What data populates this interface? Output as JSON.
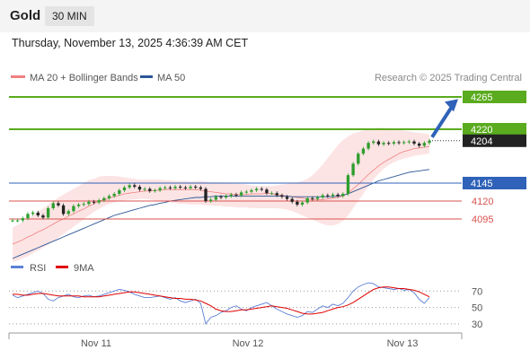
{
  "header": {
    "symbol": "Gold",
    "interval": "30 MIN",
    "datetime": "Thursday, November 13, 2025 4:36:39 AM CET"
  },
  "legend": {
    "ma20": "MA 20 + Bollinger Bands",
    "ma50": "MA 50",
    "credit": "Research © 2025 Trading Central",
    "rsi": "RSI",
    "rsi_ma": "9MA"
  },
  "colors": {
    "resistance": "#5aab1e",
    "pivot": "#2f62b8",
    "support": "#d9534f",
    "ma20": "#f08080",
    "ma50": "#2b5797",
    "band_fill": "#fde4e4",
    "rsi": "#5b7fd6",
    "rsi_ma": "#e00000",
    "last_price_bg": "#222222",
    "arrow": "#2f62b8"
  },
  "chart_data": [
    {
      "type": "line",
      "name": "price",
      "ylim": [
        4050,
        4280
      ],
      "last_price": "4204",
      "levels": [
        {
          "label": "4265",
          "value": 4265,
          "kind": "resistance"
        },
        {
          "label": "4220",
          "value": 4220,
          "kind": "resistance"
        },
        {
          "label": "4145",
          "value": 4145,
          "kind": "pivot"
        },
        {
          "label": "4120",
          "value": 4120,
          "kind": "support"
        },
        {
          "label": "4095",
          "value": 4095,
          "kind": "support"
        }
      ],
      "x_ticks": [
        "Nov 11",
        "Nov 12",
        "Nov 13"
      ],
      "candles_close": [
        4093,
        4093,
        4096,
        4102,
        4104,
        4100,
        4097,
        4110,
        4117,
        4114,
        4102,
        4106,
        4113,
        4115,
        4116,
        4119,
        4118,
        4121,
        4124,
        4127,
        4130,
        4135,
        4139,
        4142,
        4140,
        4136,
        4137,
        4134,
        4135,
        4138,
        4139,
        4138,
        4140,
        4139,
        4138,
        4140,
        4139,
        4137,
        4120,
        4122,
        4126,
        4125,
        4127,
        4129,
        4128,
        4132,
        4133,
        4135,
        4137,
        4136,
        4131,
        4131,
        4128,
        4126,
        4123,
        4119,
        4115,
        4118,
        4124,
        4123,
        4125,
        4128,
        4127,
        4129,
        4127,
        4130,
        4156,
        4172,
        4186,
        4193,
        4201,
        4203,
        4199,
        4201,
        4200,
        4202,
        4201,
        4202,
        4203,
        4200,
        4197,
        4201,
        4204
      ],
      "ma20": [
        4060,
        4063,
        4066,
        4070,
        4073,
        4077,
        4080,
        4084,
        4088,
        4092,
        4095,
        4099,
        4102,
        4106,
        4109,
        4113,
        4116,
        4120,
        4122,
        4124,
        4126,
        4128,
        4130,
        4131,
        4132,
        4133,
        4134,
        4134,
        4135,
        4135,
        4136,
        4136,
        4136,
        4136,
        4136,
        4136,
        4136,
        4135,
        4134,
        4133,
        4132,
        4131,
        4130,
        4130,
        4129,
        4129,
        4129,
        4130,
        4130,
        4130,
        4131,
        4130,
        4129,
        4128,
        4127,
        4126,
        4125,
        4124,
        4123,
        4122,
        4122,
        4122,
        4123,
        4124,
        4125,
        4127,
        4131,
        4137,
        4143,
        4150,
        4157,
        4163,
        4169,
        4174,
        4178,
        4182,
        4186,
        4189,
        4191,
        4193,
        4194,
        4195,
        4196
      ],
      "bb_upper": [
        4083,
        4087,
        4091,
        4095,
        4100,
        4105,
        4110,
        4115,
        4120,
        4125,
        4129,
        4133,
        4137,
        4141,
        4145,
        4149,
        4151,
        4154,
        4155,
        4155,
        4155,
        4154,
        4153,
        4152,
        4151,
        4150,
        4150,
        4150,
        4150,
        4150,
        4149,
        4149,
        4148,
        4148,
        4148,
        4147,
        4148,
        4148,
        4147,
        4146,
        4146,
        4146,
        4145,
        4145,
        4144,
        4144,
        4143,
        4142,
        4141,
        4141,
        4141,
        4141,
        4142,
        4143,
        4144,
        4145,
        4146,
        4148,
        4151,
        4156,
        4163,
        4171,
        4180,
        4189,
        4198,
        4205,
        4210,
        4214,
        4216,
        4218,
        4220,
        4221,
        4222,
        4222,
        4221,
        4220,
        4219,
        4218,
        4217,
        4216,
        4215,
        4214,
        4213
      ],
      "bb_lower": [
        4035,
        4037,
        4040,
        4043,
        4047,
        4051,
        4055,
        4059,
        4064,
        4069,
        4074,
        4079,
        4084,
        4089,
        4095,
        4100,
        4105,
        4109,
        4113,
        4116,
        4118,
        4120,
        4121,
        4122,
        4122,
        4123,
        4123,
        4122,
        4121,
        4120,
        4119,
        4118,
        4117,
        4116,
        4116,
        4115,
        4115,
        4115,
        4114,
        4114,
        4113,
        4113,
        4112,
        4112,
        4111,
        4111,
        4111,
        4110,
        4110,
        4110,
        4110,
        4110,
        4110,
        4109,
        4108,
        4106,
        4103,
        4100,
        4097,
        4094,
        4091,
        4088,
        4086,
        4086,
        4088,
        4092,
        4100,
        4110,
        4120,
        4130,
        4140,
        4150,
        4158,
        4165,
        4170,
        4174,
        4177,
        4179,
        4181,
        4183,
        4184,
        4185,
        4186
      ],
      "ma50": [
        4040,
        4043,
        4046,
        4049,
        4052,
        4055,
        4058,
        4061,
        4064,
        4067,
        4070,
        4073,
        4076,
        4079,
        4082,
        4085,
        4088,
        4091,
        4094,
        4097,
        4100,
        4102,
        4104,
        4106,
        4108,
        4110,
        4112,
        4114,
        4115,
        4117,
        4118,
        4120,
        4121,
        4122,
        4123,
        4124,
        4125,
        4125,
        4126,
        4126,
        4127,
        4127,
        4127,
        4127,
        4127,
        4127,
        4127,
        4127,
        4127,
        4127,
        4127,
        4127,
        4127,
        4127,
        4127,
        4126,
        4126,
        4126,
        4126,
        4126,
        4126,
        4126,
        4126,
        4126,
        4127,
        4128,
        4130,
        4133,
        4136,
        4139,
        4142,
        4145,
        4148,
        4150,
        4152,
        4154,
        4156,
        4158,
        4160,
        4161,
        4162,
        4163,
        4164
      ]
    },
    {
      "type": "line",
      "name": "rsi",
      "ylim": [
        20,
        90
      ],
      "y_ticks": [
        "70",
        "50",
        "30"
      ],
      "rsi": [
        65,
        62,
        64,
        66,
        68,
        70,
        67,
        60,
        58,
        62,
        64,
        66,
        63,
        62,
        64,
        65,
        63,
        64,
        66,
        68,
        70,
        72,
        71,
        69,
        66,
        64,
        62,
        62,
        63,
        64,
        62,
        60,
        62,
        58,
        56,
        58,
        60,
        55,
        30,
        38,
        40,
        44,
        46,
        50,
        52,
        48,
        46,
        50,
        52,
        54,
        56,
        52,
        48,
        45,
        42,
        40,
        38,
        40,
        45,
        44,
        48,
        52,
        50,
        54,
        52,
        55,
        62,
        70,
        75,
        78,
        80,
        79,
        75,
        74,
        73,
        72,
        73,
        71,
        72,
        68,
        60,
        55,
        62
      ],
      "rsi_ma": [
        66,
        66,
        65,
        65,
        66,
        67,
        67,
        66,
        65,
        64,
        64,
        64,
        64,
        64,
        63,
        63,
        63,
        63,
        64,
        65,
        66,
        67,
        68,
        69,
        69,
        68,
        67,
        66,
        65,
        64,
        63,
        62,
        61,
        61,
        60,
        60,
        59,
        58,
        55,
        52,
        48,
        46,
        45,
        45,
        46,
        47,
        47,
        48,
        49,
        50,
        51,
        52,
        51,
        50,
        49,
        47,
        45,
        43,
        42,
        42,
        43,
        44,
        46,
        48,
        50,
        51,
        53,
        56,
        60,
        64,
        68,
        72,
        74,
        75,
        75,
        74,
        73,
        73,
        72,
        71,
        69,
        66,
        63
      ]
    }
  ]
}
